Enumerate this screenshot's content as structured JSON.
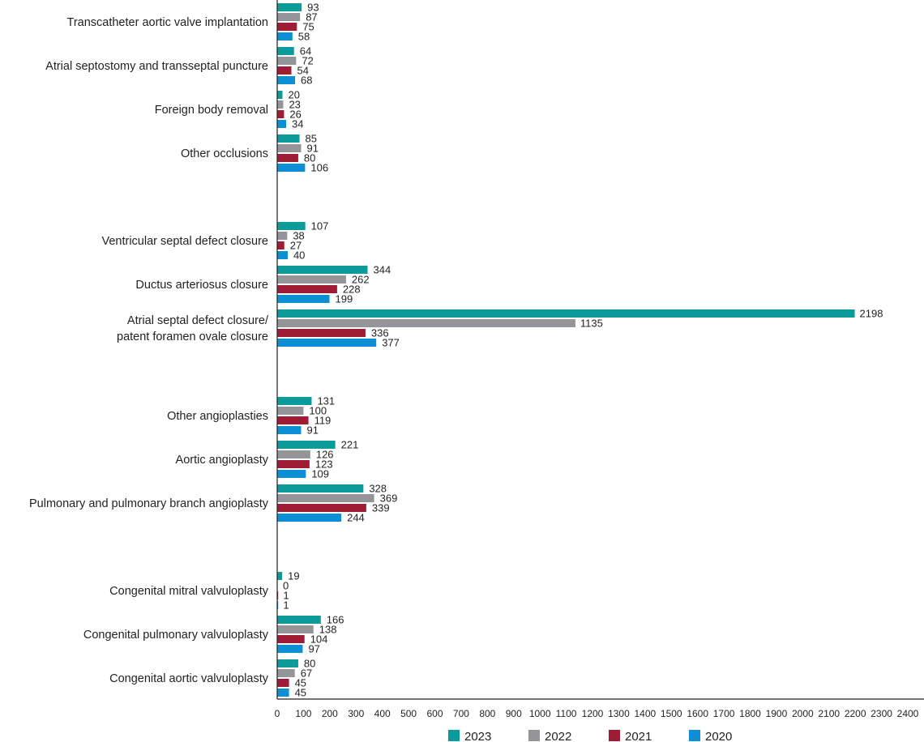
{
  "chart_data": {
    "type": "bar",
    "orientation": "horizontal",
    "title": "",
    "xlabel": "",
    "ylabel": "",
    "xlim": [
      0,
      2400
    ],
    "xticks": [
      "0",
      "100",
      "200",
      "300",
      "400",
      "500",
      "600",
      "700",
      "800",
      "900",
      "1000",
      "1100",
      "1200",
      "1300",
      "1400",
      "1500",
      "1600",
      "1700",
      "1800",
      "1900",
      "2000",
      "2100",
      "2200",
      "2300",
      "2400"
    ],
    "grid": false,
    "legend_position": "bottom",
    "categories": [
      [
        "Transcatheter aortic valve implantation"
      ],
      [
        "Atrial septostomy and transseptal puncture"
      ],
      [
        "Foreign body removal"
      ],
      [
        "Other occlusions"
      ],
      null,
      [
        "Ventricular septal defect closure"
      ],
      [
        "Ductus arteriosus closure"
      ],
      [
        "Atrial septal defect closure/",
        "patent foramen ovale closure"
      ],
      null,
      [
        "Other angioplasties"
      ],
      [
        "Aortic angioplasty"
      ],
      [
        "Pulmonary and pulmonary branch angioplasty"
      ],
      null,
      [
        "Congenital mitral valvuloplasty"
      ],
      [
        "Congenital pulmonary valvuloplasty"
      ],
      [
        "Congenital aortic valvuloplasty"
      ]
    ],
    "series": [
      {
        "name": "2023",
        "color": "#0a9b9a",
        "values": [
          93,
          64,
          20,
          85,
          null,
          107,
          344,
          2198,
          null,
          131,
          221,
          328,
          null,
          19,
          166,
          80
        ]
      },
      {
        "name": "2022",
        "color": "#939598",
        "values": [
          87,
          72,
          23,
          91,
          null,
          38,
          262,
          1135,
          null,
          100,
          126,
          369,
          null,
          0,
          138,
          67
        ]
      },
      {
        "name": "2021",
        "color": "#9e1c36",
        "values": [
          75,
          54,
          26,
          80,
          null,
          27,
          228,
          336,
          null,
          119,
          123,
          339,
          null,
          1,
          104,
          45
        ]
      },
      {
        "name": "2020",
        "color": "#0d8fd6",
        "values": [
          58,
          68,
          34,
          106,
          null,
          40,
          199,
          377,
          null,
          91,
          109,
          244,
          null,
          1,
          97,
          45
        ]
      }
    ]
  }
}
